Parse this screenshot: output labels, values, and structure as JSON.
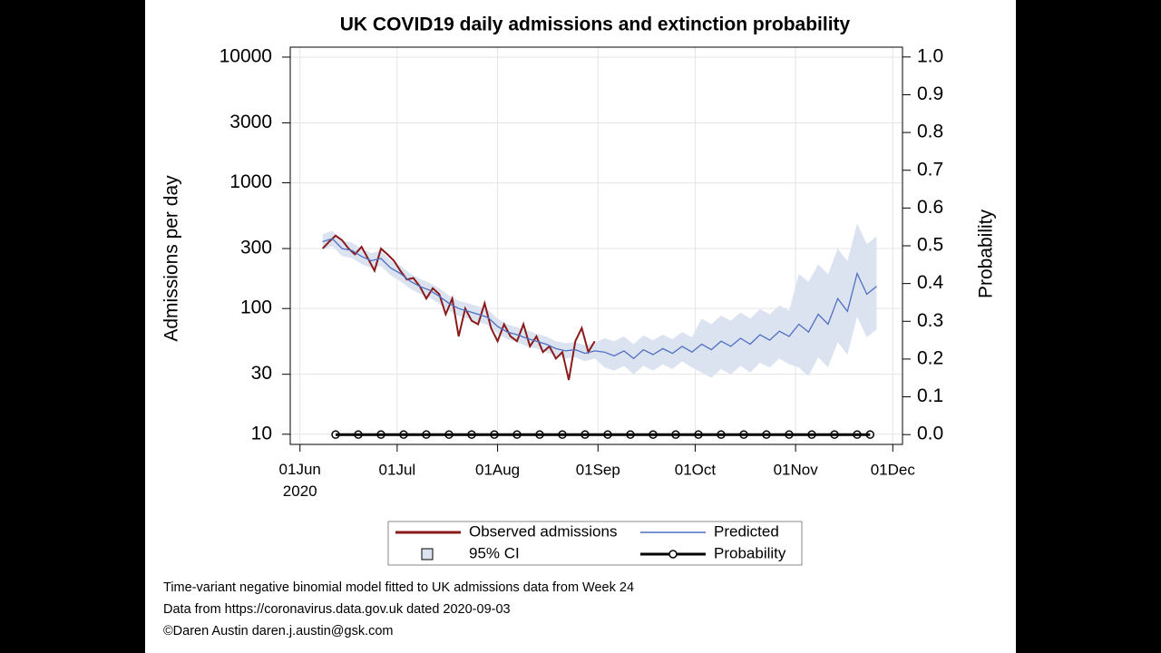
{
  "chart_data": {
    "type": "line",
    "title": "UK COVID19 daily admissions and extinction probability",
    "y_label": "Admissions per day",
    "y2_label": "Probability",
    "ylog": true,
    "grid": true,
    "xlim": [
      "2020-05-29",
      "2020-12-04"
    ],
    "xticks": [
      {
        "value": "2020-06-01",
        "label": "01Jun 2020"
      },
      {
        "value": "2020-07-01",
        "label": "01Jul"
      },
      {
        "value": "2020-08-01",
        "label": "01Aug"
      },
      {
        "value": "2020-09-01",
        "label": "01Sep"
      },
      {
        "value": "2020-10-01",
        "label": "01Oct"
      },
      {
        "value": "2020-11-01",
        "label": "01Nov"
      },
      {
        "value": "2020-12-01",
        "label": "01Dec"
      }
    ],
    "ylim": [
      8.3,
      12000
    ],
    "yticks": [
      10,
      30,
      100,
      300,
      1000,
      3000,
      10000
    ],
    "y2lim": [
      -0.026,
      1.026
    ],
    "y2ticks": [
      {
        "value": 0,
        "label": "0.0"
      },
      0.1,
      0.2,
      0.3,
      0.4,
      0.5,
      0.6,
      0.7,
      0.8,
      0.9,
      {
        "value": 1,
        "label": "1.0"
      }
    ],
    "series": [
      {
        "name": "Observed admissions",
        "color": "#8b1a1a",
        "x": [
          "2020-06-08",
          "2020-06-10",
          "2020-06-12",
          "2020-06-14",
          "2020-06-16",
          "2020-06-18",
          "2020-06-20",
          "2020-06-22",
          "2020-06-24",
          "2020-06-26",
          "2020-06-28",
          "2020-06-30",
          "2020-07-02",
          "2020-07-04",
          "2020-07-06",
          "2020-07-08",
          "2020-07-10",
          "2020-07-12",
          "2020-07-14",
          "2020-07-16",
          "2020-07-18",
          "2020-07-20",
          "2020-07-22",
          "2020-07-24",
          "2020-07-26",
          "2020-07-28",
          "2020-07-30",
          "2020-08-01",
          "2020-08-03",
          "2020-08-05",
          "2020-08-07",
          "2020-08-09",
          "2020-08-11",
          "2020-08-13",
          "2020-08-15",
          "2020-08-17",
          "2020-08-19",
          "2020-08-21",
          "2020-08-23",
          "2020-08-25",
          "2020-08-27",
          "2020-08-29",
          "2020-08-31"
        ],
        "values": [
          300,
          340,
          380,
          350,
          300,
          270,
          310,
          250,
          200,
          300,
          270,
          240,
          200,
          170,
          175,
          150,
          120,
          145,
          130,
          90,
          120,
          60,
          100,
          80,
          75,
          110,
          70,
          55,
          75,
          60,
          55,
          75,
          50,
          60,
          45,
          50,
          40,
          45,
          27,
          55,
          70,
          45,
          55
        ]
      },
      {
        "name": "Predicted",
        "color": "#4f6fbf",
        "x": [
          "2020-06-08",
          "2020-06-11",
          "2020-06-14",
          "2020-06-17",
          "2020-06-20",
          "2020-06-23",
          "2020-06-26",
          "2020-06-29",
          "2020-07-02",
          "2020-07-05",
          "2020-07-08",
          "2020-07-11",
          "2020-07-14",
          "2020-07-17",
          "2020-07-20",
          "2020-07-23",
          "2020-07-26",
          "2020-07-29",
          "2020-08-01",
          "2020-08-04",
          "2020-08-07",
          "2020-08-10",
          "2020-08-13",
          "2020-08-16",
          "2020-08-19",
          "2020-08-22",
          "2020-08-25",
          "2020-08-28",
          "2020-08-31",
          "2020-09-03",
          "2020-09-06",
          "2020-09-09",
          "2020-09-12",
          "2020-09-15",
          "2020-09-18",
          "2020-09-21",
          "2020-09-24",
          "2020-09-27",
          "2020-09-30",
          "2020-10-03",
          "2020-10-06",
          "2020-10-09",
          "2020-10-12",
          "2020-10-15",
          "2020-10-18",
          "2020-10-21",
          "2020-10-24",
          "2020-10-27",
          "2020-10-30",
          "2020-11-02",
          "2020-11-05",
          "2020-11-08",
          "2020-11-11",
          "2020-11-14",
          "2020-11-17",
          "2020-11-20",
          "2020-11-23",
          "2020-11-26"
        ],
        "values": [
          340,
          360,
          300,
          290,
          260,
          240,
          250,
          210,
          190,
          165,
          150,
          140,
          125,
          110,
          100,
          95,
          90,
          85,
          72,
          65,
          62,
          58,
          55,
          52,
          48,
          46,
          47,
          44,
          46,
          45,
          42,
          46,
          40,
          47,
          43,
          48,
          44,
          50,
          45,
          52,
          47,
          55,
          50,
          58,
          52,
          62,
          56,
          66,
          60,
          75,
          65,
          90,
          75,
          120,
          95,
          190,
          130,
          150
        ]
      },
      {
        "name": "95% CI",
        "color": "#dbe3f1",
        "x": [
          "2020-06-08",
          "2020-06-11",
          "2020-06-14",
          "2020-06-17",
          "2020-06-20",
          "2020-06-23",
          "2020-06-26",
          "2020-06-29",
          "2020-07-02",
          "2020-07-05",
          "2020-07-08",
          "2020-07-11",
          "2020-07-14",
          "2020-07-17",
          "2020-07-20",
          "2020-07-23",
          "2020-07-26",
          "2020-07-29",
          "2020-08-01",
          "2020-08-04",
          "2020-08-07",
          "2020-08-10",
          "2020-08-13",
          "2020-08-16",
          "2020-08-19",
          "2020-08-22",
          "2020-08-25",
          "2020-08-28",
          "2020-08-31",
          "2020-09-03",
          "2020-09-06",
          "2020-09-09",
          "2020-09-12",
          "2020-09-15",
          "2020-09-18",
          "2020-09-21",
          "2020-09-24",
          "2020-09-27",
          "2020-09-30",
          "2020-10-03",
          "2020-10-06",
          "2020-10-09",
          "2020-10-12",
          "2020-10-15",
          "2020-10-18",
          "2020-10-21",
          "2020-10-24",
          "2020-10-27",
          "2020-10-30",
          "2020-11-02",
          "2020-11-05",
          "2020-11-08",
          "2020-11-11",
          "2020-11-14",
          "2020-11-17",
          "2020-11-20",
          "2020-11-23",
          "2020-11-26"
        ],
        "upper": [
          390,
          415,
          345,
          335,
          300,
          275,
          290,
          240,
          220,
          190,
          172,
          160,
          145,
          127,
          115,
          110,
          104,
          98,
          83,
          75,
          71,
          67,
          63,
          60,
          55,
          53,
          54,
          51,
          53,
          58,
          55,
          60,
          52,
          61,
          56,
          62,
          57,
          65,
          59,
          83,
          75,
          88,
          80,
          93,
          83,
          99,
          90,
          106,
          96,
          188,
          163,
          225,
          188,
          300,
          238,
          475,
          325,
          375
        ],
        "lower": [
          296,
          313,
          261,
          252,
          226,
          209,
          218,
          183,
          165,
          144,
          131,
          122,
          109,
          96,
          87,
          83,
          78,
          74,
          63,
          57,
          54,
          50,
          48,
          45,
          42,
          40,
          41,
          38,
          40,
          34,
          32,
          35,
          30,
          35,
          32,
          36,
          33,
          38,
          34,
          31,
          28,
          33,
          30,
          35,
          31,
          37,
          34,
          40,
          36,
          34,
          29,
          41,
          34,
          54,
          43,
          86,
          59,
          68
        ]
      },
      {
        "name": "Probability",
        "color": "#000000",
        "axis": "y2",
        "x": [
          "2020-06-12",
          "2020-06-19",
          "2020-06-26",
          "2020-07-03",
          "2020-07-10",
          "2020-07-17",
          "2020-07-24",
          "2020-07-31",
          "2020-08-07",
          "2020-08-14",
          "2020-08-21",
          "2020-08-28",
          "2020-09-04",
          "2020-09-11",
          "2020-09-18",
          "2020-09-25",
          "2020-10-02",
          "2020-10-09",
          "2020-10-16",
          "2020-10-23",
          "2020-10-30",
          "2020-11-06",
          "2020-11-13",
          "2020-11-20",
          "2020-11-24"
        ],
        "values": [
          0,
          0,
          0,
          0,
          0,
          0,
          0,
          0,
          0,
          0,
          0,
          0,
          0,
          0,
          0,
          0,
          0,
          0,
          0,
          0,
          0,
          0,
          0,
          0,
          0
        ]
      }
    ],
    "notes": [
      "Time-variant negative binomial model fitted to UK admissions data from Week 24",
      "Data from https://coronavirus.data.gov.uk dated 2020-09-03",
      "©Daren Austin daren.j.austin@gsk.com"
    ]
  }
}
